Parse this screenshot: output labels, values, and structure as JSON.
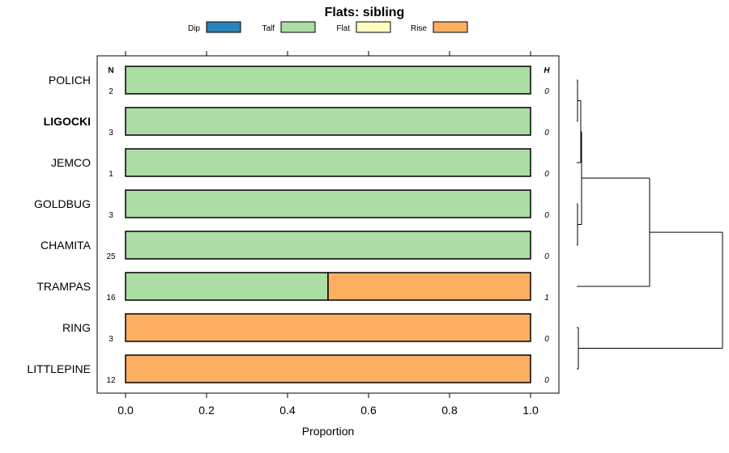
{
  "chart_data": {
    "type": "bar",
    "stacked": true,
    "orientation": "horizontal",
    "title": "Flats: sibling",
    "xlabel": "Proportion",
    "ylabel": "",
    "xlim": [
      -0.07,
      1.07
    ],
    "x_ticks": [
      0.0,
      0.2,
      0.4,
      0.6,
      0.8,
      1.0
    ],
    "x_tick_labels": [
      "0.0",
      "0.2",
      "0.4",
      "0.6",
      "0.8",
      "1.0"
    ],
    "grid": false,
    "legend_position": "top",
    "n_header": "N",
    "h_header": "H",
    "categories": [
      "POLICH",
      "LIGOCKI",
      "JEMCO",
      "GOLDBUG",
      "CHAMITA",
      "TRAMPAS",
      "RING",
      "LITTLEPINE"
    ],
    "bold_categories": [
      "LIGOCKI"
    ],
    "n_values": [
      "2",
      "3",
      "1",
      "3",
      "25",
      "16",
      "3",
      "12"
    ],
    "h_values": [
      "0",
      "0",
      "0",
      "0",
      "0",
      "1",
      "0",
      "0"
    ],
    "series": [
      {
        "name": "Dip",
        "color": "#2b83ba",
        "values": [
          0,
          0,
          0,
          0,
          0,
          0,
          0,
          0
        ]
      },
      {
        "name": "Talf",
        "color": "#abdda4",
        "values": [
          1,
          1,
          1,
          1,
          1,
          0.5,
          0,
          0
        ]
      },
      {
        "name": "Flat",
        "color": "#ffffbf",
        "values": [
          0,
          0,
          0,
          0,
          0,
          0,
          0,
          0
        ]
      },
      {
        "name": "Rise",
        "color": "#fdae61",
        "values": [
          0,
          0,
          0,
          0,
          0,
          0.5,
          1,
          1
        ]
      }
    ],
    "dendrogram": {
      "merges": [
        [
          1,
          2
        ],
        [
          4,
          5
        ],
        [
          3,
          9
        ],
        [
          10,
          11
        ],
        [
          12,
          6
        ],
        [
          7,
          8
        ],
        [
          13,
          14
        ]
      ],
      "heights": [
        0.01,
        0.01,
        0.05,
        0.06,
        0.9,
        0.02,
        1.8
      ]
    }
  }
}
